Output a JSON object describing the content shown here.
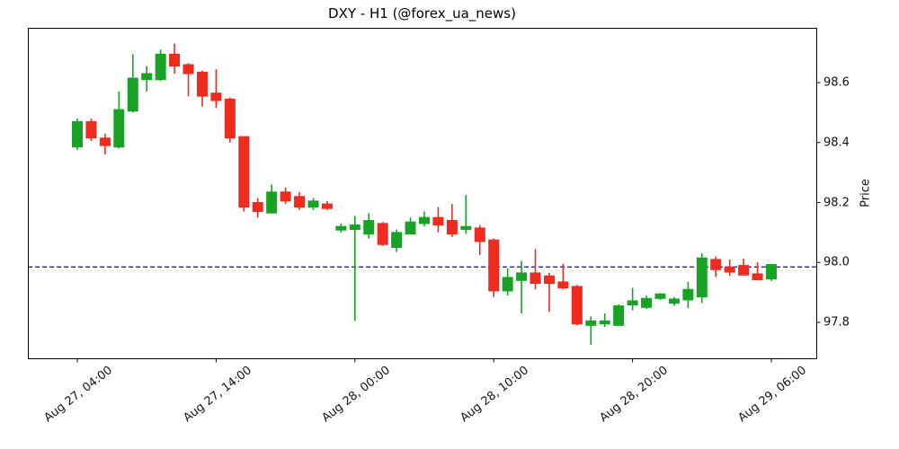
{
  "chart": {
    "title": "DXY - H1 (@forex_ua_news)",
    "ylabel": "Price",
    "up_color": "#18a326",
    "down_color": "#ee2b1e",
    "hline": {
      "value": 97.985,
      "color": "#0000ff",
      "style": "dashed"
    },
    "y_ticks": [
      {
        "value": 98.6,
        "label": "98.6"
      },
      {
        "value": 98.4,
        "label": "98.4"
      },
      {
        "value": 98.2,
        "label": "98.2"
      },
      {
        "value": 98.0,
        "label": "98.0"
      },
      {
        "value": 97.8,
        "label": "97.8"
      }
    ],
    "x_ticks": [
      {
        "index": 0,
        "label": "Aug 27, 04:00"
      },
      {
        "index": 10,
        "label": "Aug 27, 14:00"
      },
      {
        "index": 20,
        "label": "Aug 28, 00:00"
      },
      {
        "index": 30,
        "label": "Aug 28, 10:00"
      },
      {
        "index": 40,
        "label": "Aug 28, 20:00"
      },
      {
        "index": 50,
        "label": "Aug 29, 06:00"
      }
    ]
  },
  "chart_data": {
    "type": "candlestick",
    "title": "DXY - H1 (@forex_ua_news)",
    "xlabel": "",
    "ylabel": "Price",
    "timeframe": "H1",
    "ylim": [
      97.68,
      98.78
    ],
    "grid": false,
    "hline": 97.985,
    "x": [
      "Aug 27, 04:00",
      "Aug 27, 05:00",
      "Aug 27, 06:00",
      "Aug 27, 07:00",
      "Aug 27, 08:00",
      "Aug 27, 09:00",
      "Aug 27, 10:00",
      "Aug 27, 11:00",
      "Aug 27, 12:00",
      "Aug 27, 13:00",
      "Aug 27, 14:00",
      "Aug 27, 15:00",
      "Aug 27, 16:00",
      "Aug 27, 17:00",
      "Aug 27, 18:00",
      "Aug 27, 19:00",
      "Aug 27, 20:00",
      "Aug 27, 21:00",
      "Aug 27, 22:00",
      "Aug 27, 23:00",
      "Aug 28, 00:00",
      "Aug 28, 01:00",
      "Aug 28, 02:00",
      "Aug 28, 03:00",
      "Aug 28, 04:00",
      "Aug 28, 05:00",
      "Aug 28, 06:00",
      "Aug 28, 07:00",
      "Aug 28, 08:00",
      "Aug 28, 09:00",
      "Aug 28, 10:00",
      "Aug 28, 11:00",
      "Aug 28, 12:00",
      "Aug 28, 13:00",
      "Aug 28, 14:00",
      "Aug 28, 15:00",
      "Aug 28, 16:00",
      "Aug 28, 17:00",
      "Aug 28, 18:00",
      "Aug 28, 19:00",
      "Aug 28, 20:00",
      "Aug 28, 21:00",
      "Aug 28, 22:00",
      "Aug 28, 23:00",
      "Aug 29, 00:00",
      "Aug 29, 01:00",
      "Aug 29, 02:00",
      "Aug 29, 03:00",
      "Aug 29, 04:00",
      "Aug 29, 05:00",
      "Aug 29, 06:00"
    ],
    "ohlc": [
      [
        98.385,
        98.48,
        98.375,
        98.47
      ],
      [
        98.47,
        98.48,
        98.405,
        98.415
      ],
      [
        98.415,
        98.43,
        98.36,
        98.39
      ],
      [
        98.385,
        98.57,
        98.38,
        98.51
      ],
      [
        98.505,
        98.695,
        98.5,
        98.615
      ],
      [
        98.61,
        98.655,
        98.57,
        98.63
      ],
      [
        98.61,
        98.71,
        98.605,
        98.695
      ],
      [
        98.695,
        98.73,
        98.63,
        98.655
      ],
      [
        98.66,
        98.665,
        98.555,
        98.63
      ],
      [
        98.635,
        98.64,
        98.52,
        98.555
      ],
      [
        98.565,
        98.645,
        98.515,
        98.54
      ],
      [
        98.545,
        98.55,
        98.4,
        98.415
      ],
      [
        98.42,
        98.42,
        98.17,
        98.185
      ],
      [
        98.2,
        98.215,
        98.15,
        98.17
      ],
      [
        98.165,
        98.26,
        98.165,
        98.235
      ],
      [
        98.235,
        98.25,
        98.195,
        98.205
      ],
      [
        98.22,
        98.235,
        98.175,
        98.185
      ],
      [
        98.185,
        98.215,
        98.175,
        98.205
      ],
      [
        98.195,
        98.205,
        98.175,
        98.18
      ],
      [
        98.108,
        98.13,
        98.1,
        98.12
      ],
      [
        98.11,
        98.155,
        97.805,
        98.125
      ],
      [
        98.095,
        98.165,
        98.08,
        98.14
      ],
      [
        98.13,
        98.135,
        98.055,
        98.06
      ],
      [
        98.05,
        98.11,
        98.035,
        98.1
      ],
      [
        98.095,
        98.15,
        98.095,
        98.135
      ],
      [
        98.13,
        98.17,
        98.12,
        98.15
      ],
      [
        98.15,
        98.185,
        98.1,
        98.125
      ],
      [
        98.14,
        98.195,
        98.085,
        98.095
      ],
      [
        98.11,
        98.225,
        98.095,
        98.12
      ],
      [
        98.115,
        98.125,
        98.025,
        98.07
      ],
      [
        98.075,
        98.08,
        97.885,
        97.905
      ],
      [
        97.905,
        97.98,
        97.89,
        97.95
      ],
      [
        97.94,
        98.005,
        97.83,
        97.965
      ],
      [
        97.965,
        98.045,
        97.91,
        97.93
      ],
      [
        97.955,
        97.965,
        97.835,
        97.93
      ],
      [
        97.935,
        97.995,
        97.91,
        97.915
      ],
      [
        97.92,
        97.925,
        97.79,
        97.795
      ],
      [
        97.79,
        97.82,
        97.725,
        97.805
      ],
      [
        97.795,
        97.83,
        97.785,
        97.805
      ],
      [
        97.79,
        97.86,
        97.79,
        97.855
      ],
      [
        97.858,
        97.915,
        97.84,
        97.872
      ],
      [
        97.85,
        97.89,
        97.845,
        97.88
      ],
      [
        97.88,
        97.898,
        97.875,
        97.895
      ],
      [
        97.864,
        97.885,
        97.855,
        97.878
      ],
      [
        97.875,
        97.935,
        97.848,
        97.91
      ],
      [
        97.885,
        98.03,
        97.865,
        98.015
      ],
      [
        98.01,
        98.02,
        97.952,
        97.976
      ],
      [
        97.985,
        98.01,
        97.955,
        97.968
      ],
      [
        97.99,
        98.013,
        97.958,
        97.958
      ],
      [
        97.962,
        98.0,
        97.94,
        97.942
      ],
      [
        97.945,
        97.995,
        97.938,
        97.993
      ]
    ]
  }
}
